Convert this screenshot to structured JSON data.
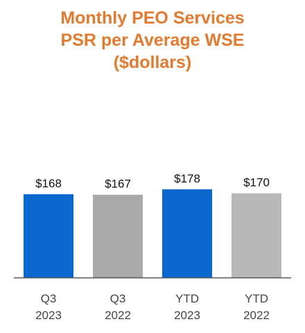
{
  "chart_data": {
    "type": "bar",
    "title_lines": [
      "Monthly PEO Services",
      "PSR per Average WSE",
      "($dollars)"
    ],
    "categories": [
      [
        "Q3",
        "2023"
      ],
      [
        "Q3",
        "2022"
      ],
      [
        "YTD",
        "2023"
      ],
      [
        "YTD",
        "2022"
      ]
    ],
    "values": [
      168,
      167,
      178,
      170
    ],
    "value_labels": [
      "$168",
      "$167",
      "$178",
      "$170"
    ],
    "bar_colors": [
      "#0a68cf",
      "#aaaaaa",
      "#0a68cf",
      "#b8b8b8"
    ],
    "title_color": "#e57a2e",
    "xlabel": "",
    "ylabel": "",
    "grid": false,
    "legend": "none"
  }
}
